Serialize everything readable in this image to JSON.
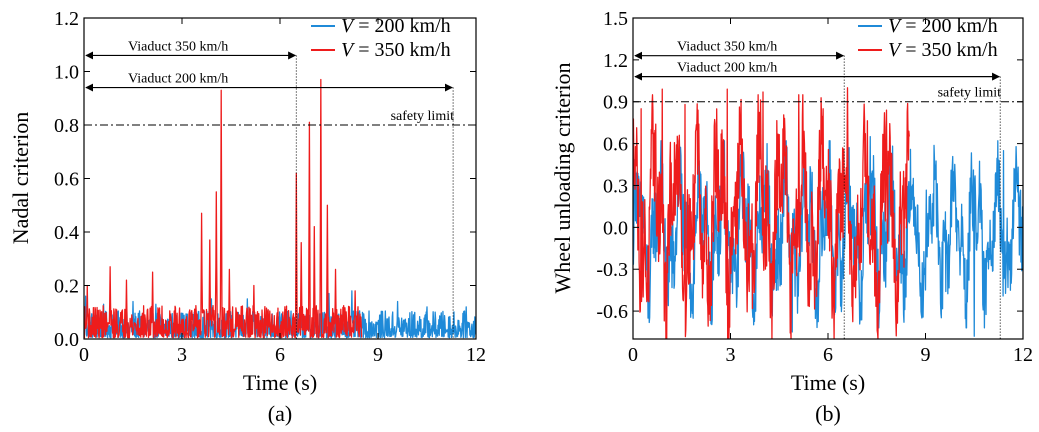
{
  "chart_data": [
    {
      "type": "line",
      "panel_label": "(a)",
      "xlabel": "Time (s)",
      "ylabel": "Nadal criterion",
      "xlim": [
        0,
        12
      ],
      "ylim": [
        0,
        1.2
      ],
      "x_ticks": [
        0,
        3,
        6,
        9,
        12
      ],
      "x_tick_labels": [
        "0",
        "3",
        "6",
        "9",
        "12"
      ],
      "y_ticks": [
        0.0,
        0.2,
        0.4,
        0.6,
        0.8,
        1.0,
        1.2
      ],
      "y_tick_labels": [
        "0.0",
        "0.2",
        "0.4",
        "0.6",
        "0.8",
        "1.0",
        "1.2"
      ],
      "grid": false,
      "legend_position": "top-right",
      "safety_limit": {
        "value": 0.8,
        "label": "safety limit"
      },
      "annotations": [
        {
          "text": "Viaduct 350 km/h",
          "x_start": 0,
          "x_end": 6.5,
          "y": 1.06
        },
        {
          "text": "Viaduct 200 km/h",
          "x_start": 0,
          "x_end": 11.3,
          "y": 0.94
        }
      ],
      "series": [
        {
          "name_italic": "V",
          "name_rest": " = 200 km/h",
          "color": "#1f8ad8",
          "x_range": [
            0,
            12
          ],
          "baseline_amplitude": 0.1,
          "peaks": [
            {
              "x": 0.05,
              "y": 0.16
            },
            {
              "x": 0.6,
              "y": 0.13
            },
            {
              "x": 1.5,
              "y": 0.14
            },
            {
              "x": 2.2,
              "y": 0.13
            },
            {
              "x": 3.9,
              "y": 0.15
            },
            {
              "x": 5.0,
              "y": 0.15
            },
            {
              "x": 7.5,
              "y": 0.17
            },
            {
              "x": 8.2,
              "y": 0.18
            },
            {
              "x": 9.6,
              "y": 0.14
            },
            {
              "x": 10.5,
              "y": 0.12
            },
            {
              "x": 11.7,
              "y": 0.12
            }
          ]
        },
        {
          "name_italic": "V",
          "name_rest": " = 350 km/h",
          "color": "#ee1c1c",
          "x_range": [
            0,
            8.5
          ],
          "baseline_amplitude": 0.12,
          "peaks": [
            {
              "x": 0.1,
              "y": 0.2
            },
            {
              "x": 0.8,
              "y": 0.27
            },
            {
              "x": 1.3,
              "y": 0.22
            },
            {
              "x": 2.1,
              "y": 0.25
            },
            {
              "x": 3.6,
              "y": 0.47
            },
            {
              "x": 3.85,
              "y": 0.37
            },
            {
              "x": 4.05,
              "y": 0.55
            },
            {
              "x": 4.2,
              "y": 0.93
            },
            {
              "x": 4.45,
              "y": 0.26
            },
            {
              "x": 5.2,
              "y": 0.2
            },
            {
              "x": 6.5,
              "y": 0.62
            },
            {
              "x": 6.65,
              "y": 0.36
            },
            {
              "x": 6.9,
              "y": 0.81
            },
            {
              "x": 7.05,
              "y": 0.42
            },
            {
              "x": 7.25,
              "y": 0.97
            },
            {
              "x": 7.45,
              "y": 0.5
            },
            {
              "x": 7.7,
              "y": 0.26
            },
            {
              "x": 8.3,
              "y": 0.18
            }
          ]
        }
      ]
    },
    {
      "type": "line",
      "panel_label": "(b)",
      "xlabel": "Time (s)",
      "ylabel": "Wheel unloading criterion",
      "xlim": [
        0,
        12
      ],
      "ylim": [
        -0.8,
        1.5
      ],
      "x_ticks": [
        0,
        3,
        6,
        9,
        12
      ],
      "x_tick_labels": [
        "0",
        "3",
        "6",
        "9",
        "12"
      ],
      "y_ticks": [
        -0.6,
        -0.3,
        0.0,
        0.3,
        0.6,
        0.9,
        1.2,
        1.5
      ],
      "y_tick_labels": [
        "-0.6",
        "-0.3",
        "0.0",
        "0.3",
        "0.6",
        "0.9",
        "1.2",
        "1.5"
      ],
      "grid": false,
      "legend_position": "top-right",
      "safety_limit": {
        "value": 0.9,
        "label": "safety limit"
      },
      "annotations": [
        {
          "text": "Viaduct 350 km/h",
          "x_start": 0,
          "x_end": 6.5,
          "y": 1.23
        },
        {
          "text": "Viaduct 200 km/h",
          "x_start": 0,
          "x_end": 11.3,
          "y": 1.08
        }
      ],
      "series": [
        {
          "name_italic": "V",
          "name_rest": " = 200 km/h",
          "color": "#1f8ad8",
          "x_range": [
            0,
            12
          ],
          "oscillation_max": 0.62,
          "oscillation_min": -0.72,
          "extremes": [
            {
              "x": 10.5,
              "y": -0.78
            },
            {
              "x": 4.9,
              "y": -0.75
            },
            {
              "x": 11.4,
              "y": 0.55
            },
            {
              "x": 7.3,
              "y": 0.65
            }
          ]
        },
        {
          "name_italic": "V",
          "name_rest": " = 350 km/h",
          "color": "#ee1c1c",
          "x_range": [
            0,
            8.5
          ],
          "oscillation_max": 0.95,
          "oscillation_min": -0.8,
          "extremes": [
            {
              "x": 0.25,
              "y": 0.85
            },
            {
              "x": 0.9,
              "y": 0.99
            },
            {
              "x": 1.6,
              "y": 0.88
            },
            {
              "x": 2.9,
              "y": 0.99
            },
            {
              "x": 4.0,
              "y": 0.97
            },
            {
              "x": 5.1,
              "y": 0.95
            },
            {
              "x": 6.6,
              "y": 1.0
            },
            {
              "x": 7.8,
              "y": 0.84
            }
          ]
        }
      ]
    }
  ]
}
